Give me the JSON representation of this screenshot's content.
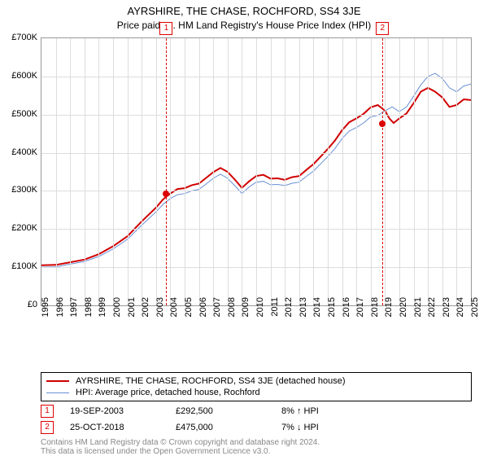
{
  "title": "AYRSHIRE, THE CHASE, ROCHFORD, SS4 3JE",
  "subtitle": "Price paid vs. HM Land Registry's House Price Index (HPI)",
  "chart": {
    "type": "line",
    "ylim": [
      0,
      700000
    ],
    "ytick_step": 100000,
    "y_ticks": [
      "£0",
      "£100K",
      "£200K",
      "£300K",
      "£400K",
      "£500K",
      "£600K",
      "£700K"
    ],
    "x_years": [
      1995,
      1996,
      1997,
      1998,
      1999,
      2000,
      2001,
      2002,
      2003,
      2004,
      2005,
      2006,
      2007,
      2008,
      2009,
      2010,
      2011,
      2012,
      2013,
      2014,
      2015,
      2016,
      2017,
      2018,
      2019,
      2020,
      2021,
      2022,
      2023,
      2024,
      2025
    ],
    "grid_color": "#dddddd",
    "border_color": "#999999",
    "background_color": "#ffffff",
    "marker_line_color": "#d00000",
    "series": [
      {
        "name": "red",
        "label": "AYRSHIRE, THE CHASE, ROCHFORD, SS4 3JE (detached house)",
        "color": "#d00000",
        "width": 2,
        "data": [
          [
            1995,
            105000
          ],
          [
            1996,
            106000
          ],
          [
            1997,
            113000
          ],
          [
            1998,
            120000
          ],
          [
            1999,
            134000
          ],
          [
            2000,
            155000
          ],
          [
            2001,
            181000
          ],
          [
            2002,
            220000
          ],
          [
            2003,
            256000
          ],
          [
            2003.5,
            278000
          ],
          [
            2004,
            293000
          ],
          [
            2004.5,
            305000
          ],
          [
            2005,
            307000
          ],
          [
            2005.5,
            315000
          ],
          [
            2006,
            319000
          ],
          [
            2006.5,
            334000
          ],
          [
            2007,
            349000
          ],
          [
            2007.5,
            360000
          ],
          [
            2008,
            350000
          ],
          [
            2008.5,
            330000
          ],
          [
            2009,
            308000
          ],
          [
            2009.5,
            325000
          ],
          [
            2010,
            339000
          ],
          [
            2010.5,
            342000
          ],
          [
            2011,
            332000
          ],
          [
            2011.5,
            333000
          ],
          [
            2012,
            329000
          ],
          [
            2012.5,
            336000
          ],
          [
            2013,
            339000
          ],
          [
            2013.5,
            355000
          ],
          [
            2014,
            370000
          ],
          [
            2014.5,
            390000
          ],
          [
            2015,
            410000
          ],
          [
            2015.5,
            432000
          ],
          [
            2016,
            459000
          ],
          [
            2016.5,
            480000
          ],
          [
            2017,
            490000
          ],
          [
            2017.5,
            502000
          ],
          [
            2018,
            519000
          ],
          [
            2018.5,
            525000
          ],
          [
            2019,
            510000
          ],
          [
            2019.3,
            490000
          ],
          [
            2019.6,
            478000
          ],
          [
            2020,
            490000
          ],
          [
            2020.5,
            503000
          ],
          [
            2021,
            530000
          ],
          [
            2021.5,
            560000
          ],
          [
            2022,
            570000
          ],
          [
            2022.5,
            560000
          ],
          [
            2023,
            545000
          ],
          [
            2023.5,
            520000
          ],
          [
            2024,
            525000
          ],
          [
            2024.5,
            540000
          ],
          [
            2025,
            538000
          ]
        ]
      },
      {
        "name": "blue",
        "label": "HPI: Average price, detached house, Rochford",
        "color": "#6a8fd4",
        "width": 1,
        "data": [
          [
            1995,
            100000
          ],
          [
            1996,
            101000
          ],
          [
            1997,
            108000
          ],
          [
            1998,
            115000
          ],
          [
            1999,
            128000
          ],
          [
            2000,
            148000
          ],
          [
            2001,
            173000
          ],
          [
            2002,
            210000
          ],
          [
            2003,
            245000
          ],
          [
            2003.5,
            265000
          ],
          [
            2004,
            280000
          ],
          [
            2004.5,
            290000
          ],
          [
            2005,
            293000
          ],
          [
            2005.5,
            300000
          ],
          [
            2006,
            304000
          ],
          [
            2006.5,
            318000
          ],
          [
            2007,
            333000
          ],
          [
            2007.5,
            344000
          ],
          [
            2008,
            333000
          ],
          [
            2008.5,
            314000
          ],
          [
            2009,
            293000
          ],
          [
            2009.5,
            310000
          ],
          [
            2010,
            323000
          ],
          [
            2010.5,
            325000
          ],
          [
            2011,
            316000
          ],
          [
            2011.5,
            317000
          ],
          [
            2012,
            314000
          ],
          [
            2012.5,
            320000
          ],
          [
            2013,
            323000
          ],
          [
            2013.5,
            338000
          ],
          [
            2014,
            352000
          ],
          [
            2014.5,
            371000
          ],
          [
            2015,
            390000
          ],
          [
            2015.5,
            411000
          ],
          [
            2016,
            437000
          ],
          [
            2016.5,
            457000
          ],
          [
            2017,
            466000
          ],
          [
            2017.5,
            478000
          ],
          [
            2018,
            494000
          ],
          [
            2018.5,
            498000
          ],
          [
            2019,
            510000
          ],
          [
            2019.5,
            520000
          ],
          [
            2020,
            508000
          ],
          [
            2020.5,
            520000
          ],
          [
            2021,
            548000
          ],
          [
            2021.5,
            578000
          ],
          [
            2022,
            600000
          ],
          [
            2022.5,
            608000
          ],
          [
            2023,
            595000
          ],
          [
            2023.5,
            570000
          ],
          [
            2024,
            560000
          ],
          [
            2024.5,
            575000
          ],
          [
            2025,
            580000
          ]
        ]
      }
    ],
    "markers": [
      {
        "n": "1",
        "year": 2003.72,
        "price": 292500
      },
      {
        "n": "2",
        "year": 2018.82,
        "price": 475000
      }
    ]
  },
  "legend": {
    "row1": "AYRSHIRE, THE CHASE, ROCHFORD, SS4 3JE (detached house)",
    "row2": "HPI: Average price, detached house, Rochford"
  },
  "sales": [
    {
      "n": "1",
      "date": "19-SEP-2003",
      "price": "£292,500",
      "delta": "8% ↑ HPI"
    },
    {
      "n": "2",
      "date": "25-OCT-2018",
      "price": "£475,000",
      "delta": "7% ↓ HPI"
    }
  ],
  "footer1": "Contains HM Land Registry data © Crown copyright and database right 2024.",
  "footer2": "This data is licensed under the Open Government Licence v3.0."
}
